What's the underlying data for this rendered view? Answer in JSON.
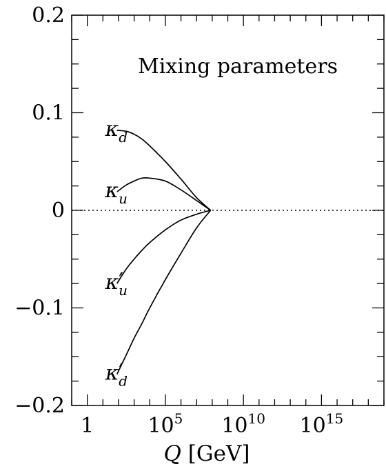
{
  "chart_data": {
    "type": "line",
    "title": "Mixing parameters",
    "xlabel": {
      "var": "Q",
      "unit": " [GeV]"
    },
    "ylabel": "",
    "xscale": "log10",
    "xlim": [
      -1,
      19
    ],
    "ylim": [
      -0.2,
      0.2
    ],
    "xticks": [
      {
        "exp": 0,
        "base": "1",
        "sup": ""
      },
      {
        "exp": 5,
        "base": "10",
        "sup": "5"
      },
      {
        "exp": 10,
        "base": "10",
        "sup": "10"
      },
      {
        "exp": 15,
        "base": "10",
        "sup": "15"
      }
    ],
    "yticks": [
      {
        "value": 0.2,
        "label": "0.2"
      },
      {
        "value": 0.1,
        "label": "0.1"
      },
      {
        "value": 0.0,
        "label": "0"
      },
      {
        "value": -0.1,
        "label": "−0.1"
      },
      {
        "value": -0.2,
        "label": "−0.2"
      }
    ],
    "reference_line": {
      "y": 0,
      "style": "dotted"
    },
    "series": [
      {
        "name": "κ_d",
        "label_base": "κ",
        "label_prime": "",
        "label_sub": "d",
        "x": [
          1.9,
          2.5,
          3,
          3.5,
          4,
          5,
          6,
          7,
          7.9
        ],
        "y": [
          0.082,
          0.081,
          0.078,
          0.073,
          0.066,
          0.05,
          0.032,
          0.013,
          0.0
        ]
      },
      {
        "name": "κ_u",
        "label_base": "κ",
        "label_prime": "",
        "label_sub": "u",
        "x": [
          1.9,
          2.5,
          3,
          3.5,
          4,
          5,
          6,
          7,
          7.9
        ],
        "y": [
          0.019,
          0.026,
          0.03,
          0.033,
          0.033,
          0.03,
          0.021,
          0.01,
          0.0
        ]
      },
      {
        "name": "κ′_u",
        "label_base": "κ",
        "label_prime": "′",
        "label_sub": "u",
        "x": [
          1.9,
          2.5,
          3,
          3.5,
          4,
          5,
          6,
          7,
          7.9
        ],
        "y": [
          -0.075,
          -0.06,
          -0.05,
          -0.041,
          -0.033,
          -0.02,
          -0.01,
          -0.004,
          0.0
        ]
      },
      {
        "name": "κ′_d",
        "label_base": "κ",
        "label_prime": "′",
        "label_sub": "d",
        "x": [
          1.9,
          2.5,
          3,
          3.5,
          4,
          5,
          6,
          7,
          7.9
        ],
        "y": [
          -0.168,
          -0.148,
          -0.131,
          -0.116,
          -0.1,
          -0.071,
          -0.044,
          -0.018,
          0.0
        ]
      }
    ],
    "grid": false,
    "legend": "inline labels at left end of each curve",
    "line_color": "#000000"
  }
}
